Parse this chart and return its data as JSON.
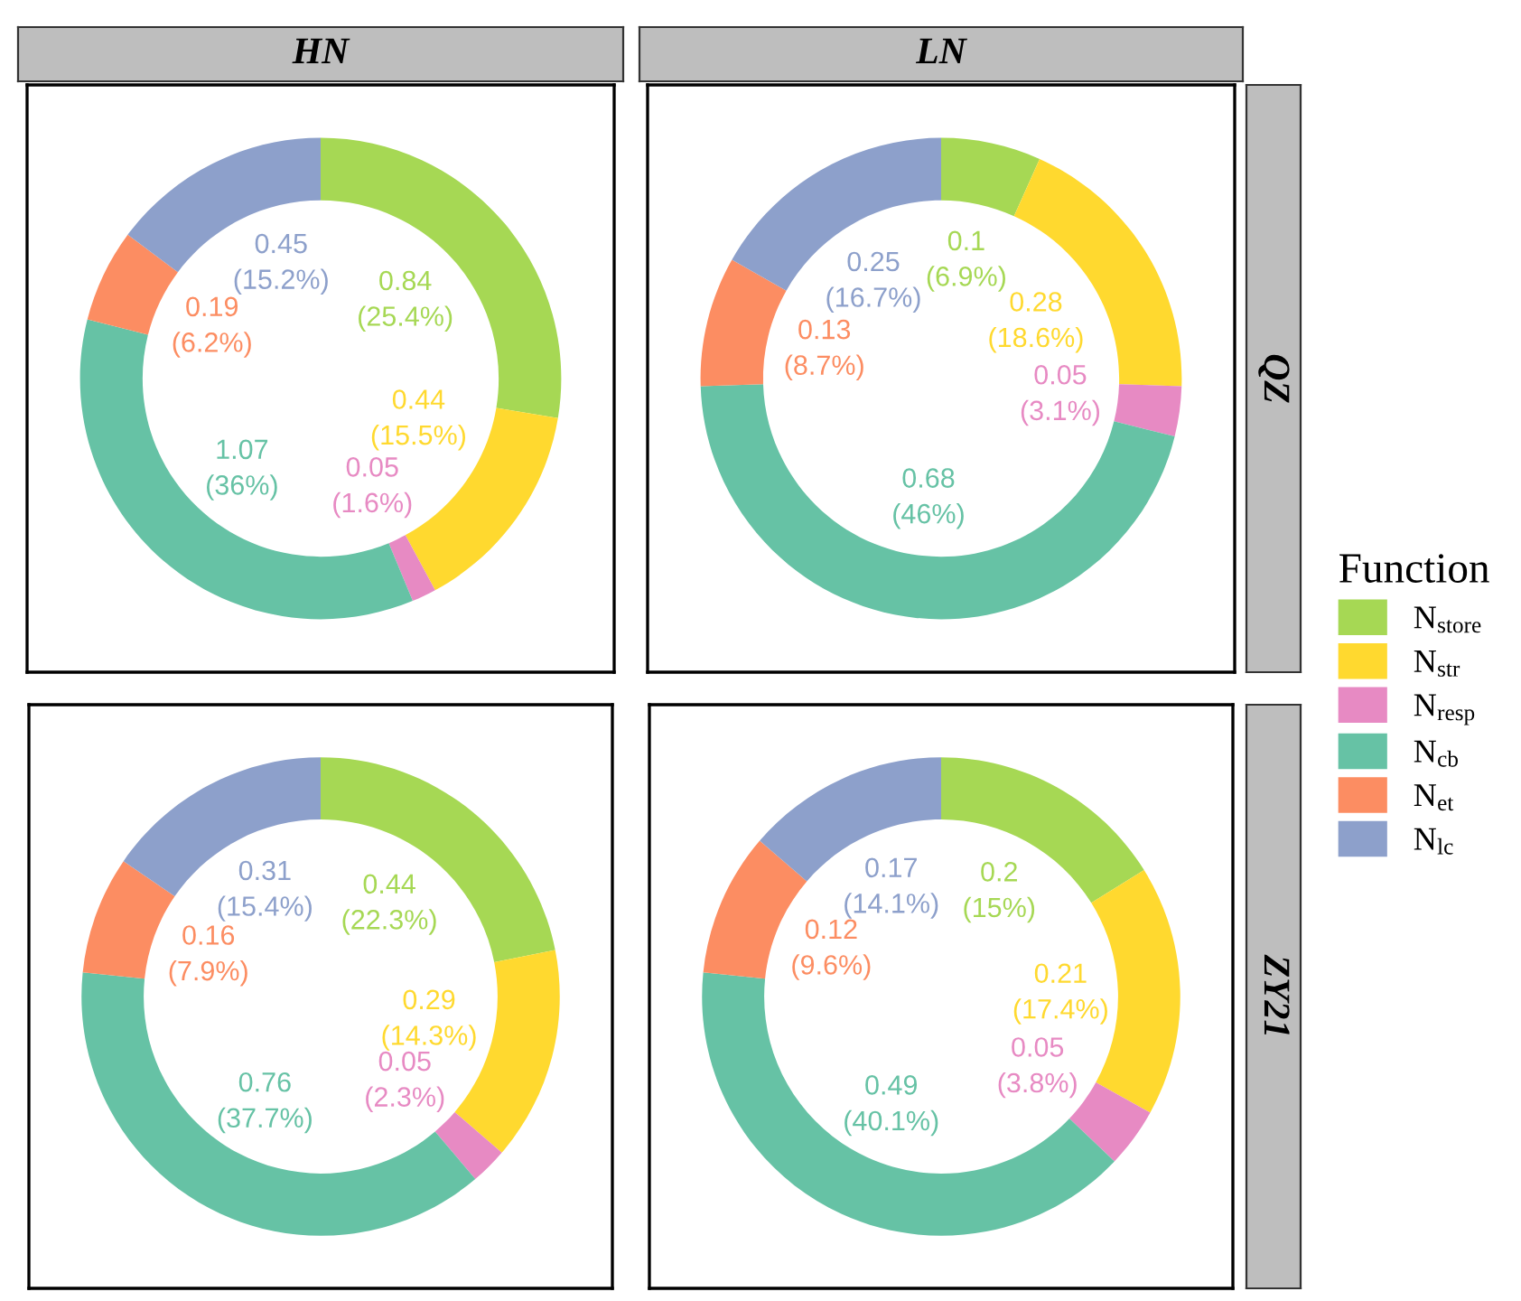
{
  "chart_data": [
    {
      "type": "donut",
      "title": "HN",
      "legend": "right",
      "legend_title": "Function",
      "categories": [
        "N$_{store}$",
        "N$_{str}$",
        "N$_{resp}$",
        "N$_{cb}$",
        "N$_{et}$",
        "N$_{lc}$"
      ],
      "values": [
        0.84,
        0.44,
        0.05,
        1.07,
        0.19,
        0.45
      ],
      "value_labels": [
        "0.84\n(25.4%)",
        "0.44\n(15.5%)",
        "0.05\n(1.6%)",
        "1.07\n(36%)",
        "0.19\n(6.2%)",
        "0.45\n(15.2%)"
      ],
      "colors": [
        "#a6d854",
        "#ffd92f",
        "#e78ac3",
        "#66c2a5",
        "#fc8d62",
        "#8da0cb"
      ]
    },
    {
      "type": "donut",
      "title": "LN",
      "y2label": "QZ",
      "categories": [
        null,
        null,
        null,
        null,
        null,
        null
      ],
      "values": [
        0.1,
        0.28,
        0.05,
        0.68,
        0.13,
        0.25
      ],
      "value_labels": [
        "0.1\n(6.9%)",
        "0.28\n(18.6%)",
        "0.05\n(3.1%)",
        "0.68\n(46%)",
        "0.13\n(8.7%)",
        "0.25\n(16.7%)"
      ],
      "colors": [
        "#a6d854",
        "#ffd92f",
        "#e78ac3",
        "#66c2a5",
        "#fc8d62",
        "#8da0cb"
      ]
    },
    {
      "type": "donut",
      "categories": [
        null,
        null,
        null,
        null,
        null,
        null
      ],
      "values": [
        0.44,
        0.29,
        0.05,
        0.76,
        0.16,
        0.31
      ],
      "value_labels": [
        "0.44\n(22.3%)",
        "0.29\n(14.3%)",
        "0.05\n(2.3%)",
        "0.76\n(37.7%)",
        "0.16\n(7.9%)",
        "0.31\n(15.4%)"
      ],
      "colors": [
        "#a6d854",
        "#ffd92f",
        "#e78ac3",
        "#66c2a5",
        "#fc8d62",
        "#8da0cb"
      ]
    },
    {
      "type": "donut",
      "y2label": "ZY21",
      "categories": [
        null,
        null,
        null,
        null,
        null,
        null
      ],
      "values": [
        0.2,
        0.21,
        0.05,
        0.49,
        0.12,
        0.17
      ],
      "value_labels": [
        "0.2\n(15%)",
        "0.21\n(17.4%)",
        "0.05\n(3.8%)",
        "0.49\n(40.1%)",
        "0.12\n(9.6%)",
        "0.17\n(14.1%)"
      ],
      "colors": [
        "#a6d854",
        "#ffd92f",
        "#e78ac3",
        "#66c2a5",
        "#fc8d62",
        "#8da0cb"
      ]
    }
  ]
}
